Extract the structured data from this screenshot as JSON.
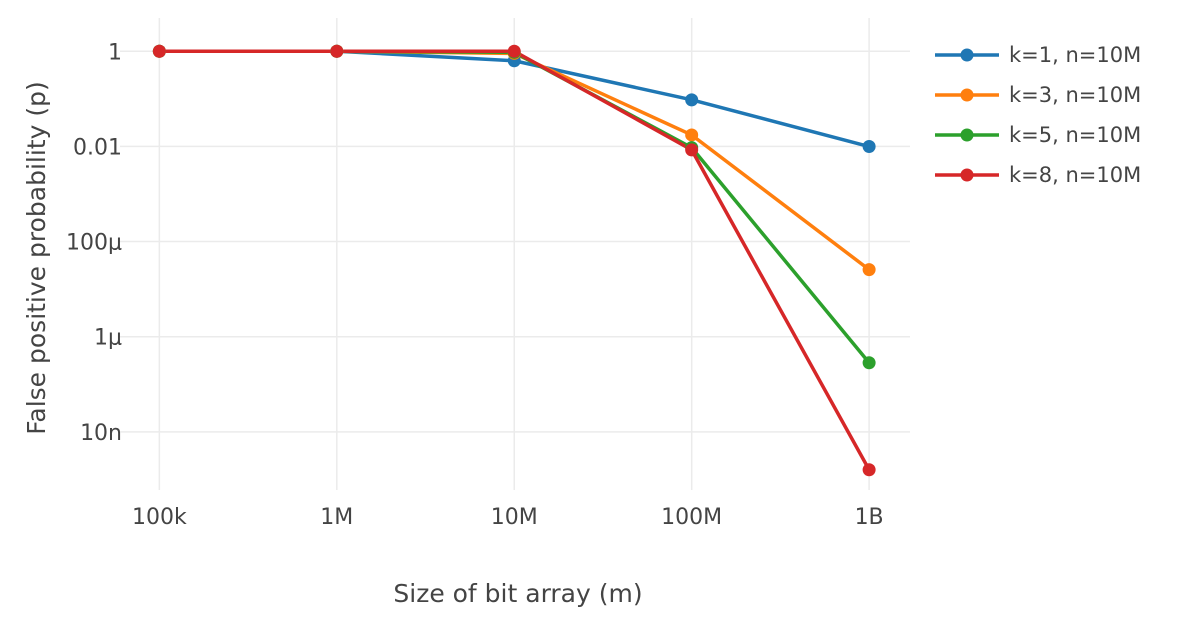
{
  "chart_data": {
    "type": "line",
    "title": "",
    "xlabel": "Size of bit array (m)",
    "ylabel": "False positive probability (p)",
    "x_scale": "log",
    "y_scale": "log",
    "x": [
      100000,
      1000000,
      10000000,
      100000000,
      1000000000
    ],
    "x_tick_labels": [
      "100k",
      "1M",
      "10M",
      "100M",
      "1B"
    ],
    "y_ticks": [
      1,
      0.01,
      0.0001,
      1e-06,
      1e-08
    ],
    "y_tick_labels": [
      "1",
      "0.01",
      "100μ",
      "1μ",
      "10n"
    ],
    "xlim": [
      60000,
      1700000000
    ],
    "ylim": [
      6e-10,
      5
    ],
    "grid": true,
    "legend_position": "top-right",
    "series": [
      {
        "name": "k=1, n=10M",
        "color": "#1f77b4",
        "values": [
          1,
          1,
          0.632,
          0.0952,
          0.00995
        ]
      },
      {
        "name": "k=3, n=10M",
        "color": "#ff7f0e",
        "values": [
          1,
          1,
          0.9,
          0.0174,
          2.57e-05
        ]
      },
      {
        "name": "k=5, n=10M",
        "color": "#2ca02c",
        "values": [
          1,
          1,
          0.95,
          0.00943,
          2.84e-07
        ]
      },
      {
        "name": "k=8, n=10M",
        "color": "#d62728",
        "values": [
          1,
          1,
          1,
          0.00846,
          1.6e-09
        ]
      }
    ]
  }
}
